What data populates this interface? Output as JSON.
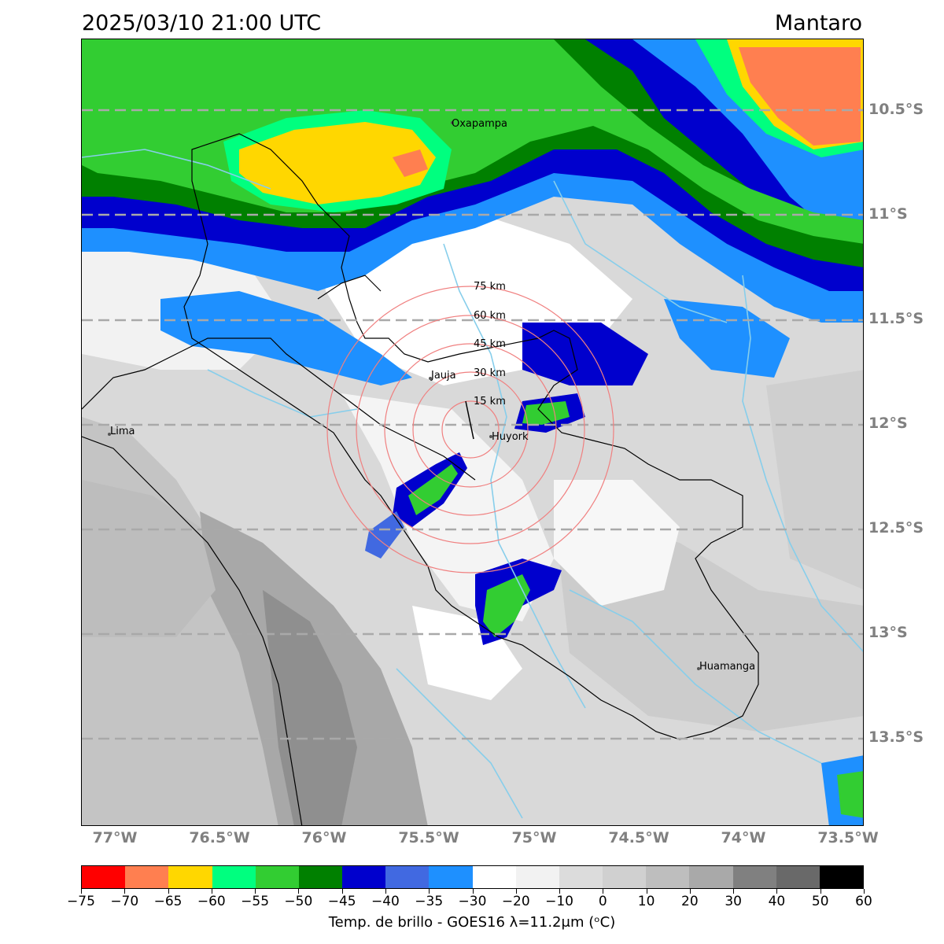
{
  "header": {
    "datetime": "2025/03/10 21:00 UTC",
    "region": "Mantaro"
  },
  "map": {
    "lat_labels": [
      "10.5°S",
      "11°S",
      "11.5°S",
      "12°S",
      "12.5°S",
      "13°S",
      "13.5°S"
    ],
    "lon_labels": [
      "77°W",
      "76.5°W",
      "76°W",
      "75.5°W",
      "75°W",
      "74.5°W",
      "74°W",
      "73.5°W"
    ],
    "ring_labels": [
      "15 km",
      "30 km",
      "45 km",
      "60 km",
      "75 km"
    ],
    "places": [
      {
        "name": "Oxapampa"
      },
      {
        "name": "Jauja"
      },
      {
        "name": "Huyork"
      },
      {
        "name": "Lima"
      },
      {
        "name": "Huamanga"
      }
    ]
  },
  "colorbar": {
    "label": "Temp. de brillo - GOES16 λ=11.2μm (ᵒC)",
    "ticks": [
      "−75",
      "−70",
      "−65",
      "−60",
      "−55",
      "−50",
      "−45",
      "−40",
      "−35",
      "−30",
      "−20",
      "−10",
      "0",
      "10",
      "20",
      "30",
      "40",
      "50",
      "60"
    ],
    "colors": [
      "#ff0000",
      "#ff7f50",
      "#ffd700",
      "#00ff7f",
      "#32cd32",
      "#008000",
      "#0000cd",
      "#4169e1",
      "#1e90ff",
      "#ffffff",
      "#f2f2f2",
      "#dcdcdc",
      "#d0d0d0",
      "#bebebe",
      "#a9a9a9",
      "#808080",
      "#696969",
      "#000000"
    ]
  }
}
